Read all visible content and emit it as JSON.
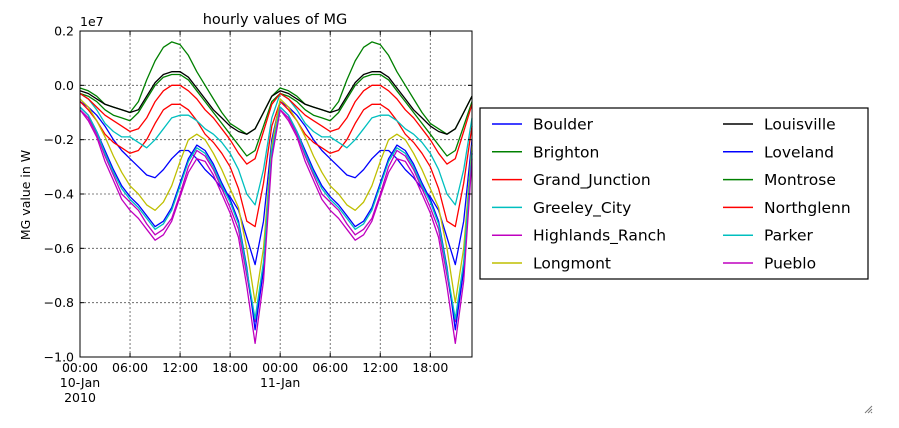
{
  "chart_data": {
    "type": "line",
    "title": "hourly values of MG",
    "xlabel": "",
    "ylabel": "MG value in W",
    "y_scale_label": "1e7",
    "ylim": [
      -1.0,
      0.2
    ],
    "yticks": [
      0.2,
      0.0,
      -0.2,
      -0.4,
      -0.6,
      -0.8,
      -1.0
    ],
    "ytick_labels": [
      "0.2",
      "0.0",
      "−0.2",
      "−0.4",
      "−0.6",
      "−0.8",
      "−1.0"
    ],
    "xlim_hours": [
      0,
      47
    ],
    "xticks": [
      {
        "hour": 0,
        "line1": "00:00",
        "line2": "10-Jan",
        "line3": "2010"
      },
      {
        "hour": 6,
        "line1": "06:00",
        "line2": "",
        "line3": ""
      },
      {
        "hour": 12,
        "line1": "12:00",
        "line2": "",
        "line3": ""
      },
      {
        "hour": 18,
        "line1": "18:00",
        "line2": "",
        "line3": ""
      },
      {
        "hour": 24,
        "line1": "00:00",
        "line2": "11-Jan",
        "line3": ""
      },
      {
        "hour": 30,
        "line1": "06:00",
        "line2": "",
        "line3": ""
      },
      {
        "hour": 36,
        "line1": "12:00",
        "line2": "",
        "line3": ""
      },
      {
        "hour": 42,
        "line1": "18:00",
        "line2": "",
        "line3": ""
      }
    ],
    "grid": true,
    "legend_position": "right, outside plot",
    "x_hours": [
      0,
      1,
      2,
      3,
      4,
      5,
      6,
      7,
      8,
      9,
      10,
      11,
      12,
      13,
      14,
      15,
      16,
      17,
      18,
      19,
      20,
      21,
      22,
      23,
      24,
      25,
      26,
      27,
      28,
      29,
      30,
      31,
      32,
      33,
      34,
      35,
      36,
      37,
      38,
      39,
      40,
      41,
      42,
      43,
      44,
      45,
      46,
      47
    ],
    "series": [
      {
        "name": "Boulder",
        "color": "#0000ff",
        "values": [
          -0.06,
          -0.08,
          -0.11,
          -0.15,
          -0.2,
          -0.24,
          -0.27,
          -0.3,
          -0.33,
          -0.34,
          -0.31,
          -0.27,
          -0.24,
          -0.24,
          -0.27,
          -0.31,
          -0.34,
          -0.38,
          -0.41,
          -0.46,
          -0.56,
          -0.66,
          -0.5,
          -0.2,
          -0.06,
          -0.08,
          -0.11,
          -0.15,
          -0.2,
          -0.24,
          -0.27,
          -0.3,
          -0.33,
          -0.34,
          -0.31,
          -0.27,
          -0.24,
          -0.24,
          -0.27,
          -0.31,
          -0.34,
          -0.38,
          -0.41,
          -0.46,
          -0.56,
          -0.66,
          -0.5,
          -0.2
        ]
      },
      {
        "name": "Brighton",
        "color": "#008000",
        "values": [
          -0.01,
          -0.02,
          -0.04,
          -0.07,
          -0.08,
          -0.09,
          -0.1,
          -0.06,
          0.02,
          0.09,
          0.14,
          0.16,
          0.15,
          0.11,
          0.05,
          0.0,
          -0.05,
          -0.1,
          -0.14,
          -0.16,
          -0.18,
          -0.16,
          -0.1,
          -0.04,
          -0.01,
          -0.02,
          -0.04,
          -0.07,
          -0.08,
          -0.09,
          -0.1,
          -0.06,
          0.02,
          0.09,
          0.14,
          0.16,
          0.15,
          0.11,
          0.05,
          0.0,
          -0.05,
          -0.1,
          -0.14,
          -0.16,
          -0.18,
          -0.16,
          -0.1,
          -0.04
        ]
      },
      {
        "name": "Grand_Junction",
        "color": "#ff0000",
        "values": [
          -0.06,
          -0.09,
          -0.13,
          -0.18,
          -0.21,
          -0.23,
          -0.25,
          -0.24,
          -0.2,
          -0.14,
          -0.09,
          -0.07,
          -0.07,
          -0.09,
          -0.13,
          -0.18,
          -0.21,
          -0.25,
          -0.3,
          -0.38,
          -0.5,
          -0.52,
          -0.36,
          -0.15,
          -0.06,
          -0.09,
          -0.13,
          -0.18,
          -0.21,
          -0.23,
          -0.25,
          -0.24,
          -0.2,
          -0.14,
          -0.09,
          -0.07,
          -0.07,
          -0.09,
          -0.13,
          -0.18,
          -0.21,
          -0.25,
          -0.3,
          -0.38,
          -0.5,
          -0.52,
          -0.36,
          -0.15
        ]
      },
      {
        "name": "Greeley_City",
        "color": "#00bfbf",
        "values": [
          -0.03,
          -0.05,
          -0.09,
          -0.14,
          -0.17,
          -0.19,
          -0.19,
          -0.21,
          -0.23,
          -0.2,
          -0.16,
          -0.12,
          -0.11,
          -0.11,
          -0.13,
          -0.16,
          -0.18,
          -0.21,
          -0.25,
          -0.31,
          -0.4,
          -0.44,
          -0.31,
          -0.12,
          -0.03,
          -0.05,
          -0.09,
          -0.14,
          -0.17,
          -0.19,
          -0.19,
          -0.21,
          -0.23,
          -0.2,
          -0.16,
          -0.12,
          -0.11,
          -0.11,
          -0.13,
          -0.16,
          -0.18,
          -0.21,
          -0.25,
          -0.31,
          -0.4,
          -0.44,
          -0.31,
          -0.12
        ]
      },
      {
        "name": "Highlands_Ranch",
        "color": "#bf00bf",
        "values": [
          -0.09,
          -0.12,
          -0.18,
          -0.26,
          -0.33,
          -0.4,
          -0.43,
          -0.46,
          -0.51,
          -0.55,
          -0.53,
          -0.49,
          -0.4,
          -0.3,
          -0.24,
          -0.26,
          -0.31,
          -0.38,
          -0.45,
          -0.53,
          -0.7,
          -0.87,
          -0.66,
          -0.25,
          -0.09,
          -0.12,
          -0.18,
          -0.26,
          -0.33,
          -0.4,
          -0.43,
          -0.46,
          -0.51,
          -0.55,
          -0.53,
          -0.49,
          -0.4,
          -0.3,
          -0.24,
          -0.26,
          -0.31,
          -0.38,
          -0.45,
          -0.53,
          -0.7,
          -0.87,
          -0.66,
          -0.25
        ]
      },
      {
        "name": "Longmont",
        "color": "#bfbf00",
        "values": [
          -0.05,
          -0.08,
          -0.13,
          -0.19,
          -0.26,
          -0.32,
          -0.37,
          -0.4,
          -0.44,
          -0.46,
          -0.43,
          -0.37,
          -0.28,
          -0.2,
          -0.18,
          -0.2,
          -0.25,
          -0.31,
          -0.38,
          -0.45,
          -0.6,
          -0.8,
          -0.6,
          -0.22,
          -0.05,
          -0.08,
          -0.13,
          -0.19,
          -0.26,
          -0.32,
          -0.37,
          -0.4,
          -0.44,
          -0.46,
          -0.43,
          -0.37,
          -0.28,
          -0.2,
          -0.18,
          -0.2,
          -0.25,
          -0.31,
          -0.38,
          -0.45,
          -0.6,
          -0.8,
          -0.6,
          -0.22
        ]
      },
      {
        "name": "Louisville",
        "color": "#000000",
        "values": [
          -0.02,
          -0.03,
          -0.05,
          -0.07,
          -0.08,
          -0.09,
          -0.1,
          -0.09,
          -0.04,
          0.01,
          0.04,
          0.05,
          0.05,
          0.03,
          -0.01,
          -0.05,
          -0.09,
          -0.12,
          -0.15,
          -0.17,
          -0.18,
          -0.16,
          -0.1,
          -0.04,
          -0.02,
          -0.03,
          -0.05,
          -0.07,
          -0.08,
          -0.09,
          -0.1,
          -0.09,
          -0.04,
          0.01,
          0.04,
          0.05,
          0.05,
          0.03,
          -0.01,
          -0.05,
          -0.09,
          -0.12,
          -0.15,
          -0.17,
          -0.18,
          -0.16,
          -0.1,
          -0.04
        ]
      },
      {
        "name": "Loveland",
        "color": "#0000ff",
        "values": [
          -0.08,
          -0.11,
          -0.17,
          -0.24,
          -0.31,
          -0.37,
          -0.41,
          -0.44,
          -0.48,
          -0.52,
          -0.5,
          -0.45,
          -0.36,
          -0.27,
          -0.22,
          -0.24,
          -0.29,
          -0.36,
          -0.42,
          -0.5,
          -0.67,
          -0.9,
          -0.68,
          -0.25,
          -0.08,
          -0.11,
          -0.17,
          -0.24,
          -0.31,
          -0.37,
          -0.41,
          -0.44,
          -0.48,
          -0.52,
          -0.5,
          -0.45,
          -0.36,
          -0.27,
          -0.22,
          -0.24,
          -0.29,
          -0.36,
          -0.42,
          -0.5,
          -0.67,
          -0.9,
          -0.68,
          -0.25
        ]
      },
      {
        "name": "Montrose",
        "color": "#008000",
        "values": [
          -0.03,
          -0.04,
          -0.06,
          -0.09,
          -0.11,
          -0.12,
          -0.13,
          -0.1,
          -0.05,
          0.0,
          0.03,
          0.04,
          0.04,
          0.02,
          -0.02,
          -0.06,
          -0.1,
          -0.14,
          -0.18,
          -0.22,
          -0.26,
          -0.24,
          -0.15,
          -0.06,
          -0.03,
          -0.04,
          -0.06,
          -0.09,
          -0.11,
          -0.12,
          -0.13,
          -0.1,
          -0.05,
          0.0,
          0.03,
          0.04,
          0.04,
          0.02,
          -0.02,
          -0.06,
          -0.1,
          -0.14,
          -0.18,
          -0.22,
          -0.26,
          -0.24,
          -0.15,
          -0.06
        ]
      },
      {
        "name": "Northglenn",
        "color": "#ff0000",
        "values": [
          -0.03,
          -0.05,
          -0.08,
          -0.11,
          -0.13,
          -0.15,
          -0.17,
          -0.16,
          -0.12,
          -0.06,
          -0.02,
          0.0,
          0.0,
          -0.02,
          -0.05,
          -0.09,
          -0.12,
          -0.16,
          -0.2,
          -0.25,
          -0.29,
          -0.27,
          -0.17,
          -0.07,
          -0.03,
          -0.05,
          -0.08,
          -0.11,
          -0.13,
          -0.15,
          -0.17,
          -0.16,
          -0.12,
          -0.06,
          -0.02,
          0.0,
          0.0,
          -0.02,
          -0.05,
          -0.09,
          -0.12,
          -0.16,
          -0.2,
          -0.25,
          -0.29,
          -0.27,
          -0.17,
          -0.07
        ]
      },
      {
        "name": "Parker",
        "color": "#00bfbf",
        "values": [
          -0.08,
          -0.11,
          -0.17,
          -0.25,
          -0.32,
          -0.38,
          -0.42,
          -0.45,
          -0.49,
          -0.53,
          -0.51,
          -0.46,
          -0.37,
          -0.28,
          -0.23,
          -0.25,
          -0.3,
          -0.37,
          -0.43,
          -0.51,
          -0.68,
          -0.86,
          -0.65,
          -0.24,
          -0.08,
          -0.11,
          -0.17,
          -0.25,
          -0.32,
          -0.38,
          -0.42,
          -0.45,
          -0.49,
          -0.53,
          -0.51,
          -0.46,
          -0.37,
          -0.28,
          -0.23,
          -0.25,
          -0.3,
          -0.37,
          -0.43,
          -0.51,
          -0.68,
          -0.86,
          -0.65,
          -0.24
        ]
      },
      {
        "name": "Pueblo",
        "color": "#bf00bf",
        "values": [
          -0.09,
          -0.13,
          -0.19,
          -0.28,
          -0.35,
          -0.42,
          -0.46,
          -0.49,
          -0.53,
          -0.57,
          -0.55,
          -0.5,
          -0.41,
          -0.32,
          -0.27,
          -0.28,
          -0.33,
          -0.4,
          -0.47,
          -0.56,
          -0.74,
          -0.95,
          -0.72,
          -0.27,
          -0.09,
          -0.13,
          -0.19,
          -0.28,
          -0.35,
          -0.42,
          -0.46,
          -0.49,
          -0.53,
          -0.57,
          -0.55,
          -0.5,
          -0.41,
          -0.32,
          -0.27,
          -0.28,
          -0.33,
          -0.4,
          -0.47,
          -0.56,
          -0.74,
          -0.95,
          -0.72,
          -0.27
        ]
      }
    ]
  },
  "window": {
    "resize_grip_icon": "resize-grip-icon"
  }
}
